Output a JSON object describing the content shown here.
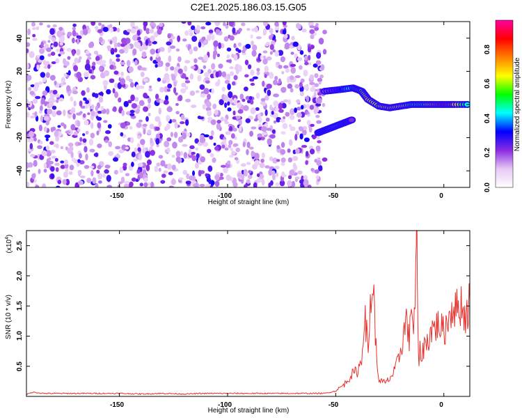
{
  "title": "C2E1.2025.186.03.15.G05",
  "chart_data": [
    {
      "type": "heatmap",
      "xlabel": "Height of straight line (km)",
      "ylabel": "Frequency (Hz)",
      "xlim": [
        -193,
        12
      ],
      "ylim": [
        -50,
        50
      ],
      "x_ticks": [
        -150,
        -100,
        -50,
        0
      ],
      "y_ticks": [
        -40,
        -20,
        0,
        20,
        40
      ],
      "colorbar": {
        "label": "Normalized spectral amplitude",
        "range": [
          0.0,
          0.97
        ],
        "ticks": [
          0.0,
          0.2,
          0.4,
          0.6,
          0.8
        ],
        "tick_labels": [
          "0.0",
          "0.2",
          "0.4",
          "0.6",
          "0.8"
        ],
        "colormap": [
          "#ffffff",
          "#e6c8f5",
          "#8a2be2",
          "#0000ff",
          "#00ffff",
          "#00ff00",
          "#ffff00",
          "#ff8000",
          "#ff0000",
          "#ff00a0"
        ]
      },
      "noise_region_x": [
        -193,
        -55
      ],
      "ridges": [
        {
          "name": "upper branch",
          "x": [
            -55,
            -48,
            -42,
            -38,
            -35,
            -30,
            -25,
            -20,
            -15,
            -10,
            -5,
            0,
            5,
            12
          ],
          "y": [
            8,
            9,
            10,
            8,
            3,
            -1,
            -2,
            -1,
            0,
            0,
            0,
            0,
            0,
            0
          ],
          "amplitude": [
            0.2,
            0.3,
            0.5,
            0.6,
            0.7,
            0.65,
            0.7,
            0.7,
            0.55,
            0.5,
            0.75,
            0.9,
            0.75,
            0.4
          ]
        },
        {
          "name": "lower branch",
          "x": [
            -58,
            -54,
            -50,
            -46,
            -42
          ],
          "y": [
            -17,
            -15,
            -13,
            -11,
            -9
          ],
          "amplitude": [
            0.25,
            0.35,
            0.45,
            0.35,
            0.2
          ]
        }
      ],
      "tick_labels_x": [
        "-150",
        "-100",
        "-50",
        "0"
      ],
      "tick_labels_y": [
        "-40",
        "-20",
        "0",
        "20",
        "40"
      ]
    },
    {
      "type": "line",
      "xlabel": "Height of straight line (km)",
      "ylabel": "SNR (10 * v/v)",
      "scale_label": "(x10",
      "scale_exp": "4",
      "xlim": [
        -193,
        12
      ],
      "ylim": [
        0,
        2.75
      ],
      "x_ticks": [
        -150,
        -100,
        -50,
        0
      ],
      "y_ticks": [
        0.5,
        1.0,
        1.5,
        2.0,
        2.5
      ],
      "tick_labels_x": [
        "-150",
        "-100",
        "-50",
        "0"
      ],
      "tick_labels_y": [
        "0.5",
        "1.0",
        "1.5",
        "2.0",
        "2.5"
      ],
      "series": [
        {
          "color": "#e8302c",
          "x": [
            -193,
            -190,
            -185,
            -180,
            -170,
            -160,
            -150,
            -140,
            -130,
            -120,
            -110,
            -100,
            -90,
            -80,
            -70,
            -60,
            -55,
            -50,
            -46,
            -43,
            -40,
            -38,
            -37,
            -36,
            -35,
            -34,
            -33,
            -32,
            -31,
            -30,
            -29,
            -27,
            -25,
            -23,
            -21,
            -19,
            -17,
            -16,
            -15,
            -14,
            -13,
            -12.5,
            -12,
            -11.5,
            -11,
            -10,
            -9,
            -8,
            -6,
            -4,
            -2,
            0,
            2,
            4,
            6,
            8,
            10,
            12
          ],
          "values": [
            0.03,
            0.07,
            0.05,
            0.05,
            0.05,
            0.05,
            0.05,
            0.04,
            0.05,
            0.04,
            0.05,
            0.05,
            0.05,
            0.05,
            0.05,
            0.05,
            0.05,
            0.09,
            0.2,
            0.35,
            0.42,
            0.6,
            1.3,
            1.2,
            0.7,
            1.5,
            1.9,
            1.4,
            0.5,
            0.3,
            0.25,
            0.22,
            0.3,
            0.4,
            0.6,
            0.95,
            1.35,
            0.8,
            1.7,
            1.05,
            1.9,
            2.75,
            1.2,
            0.4,
            0.8,
            0.65,
            0.9,
            0.85,
            1.1,
            1.15,
            1.2,
            1.05,
            1.3,
            1.5,
            1.45,
            1.55,
            1.3,
            1.6
          ]
        }
      ]
    }
  ]
}
